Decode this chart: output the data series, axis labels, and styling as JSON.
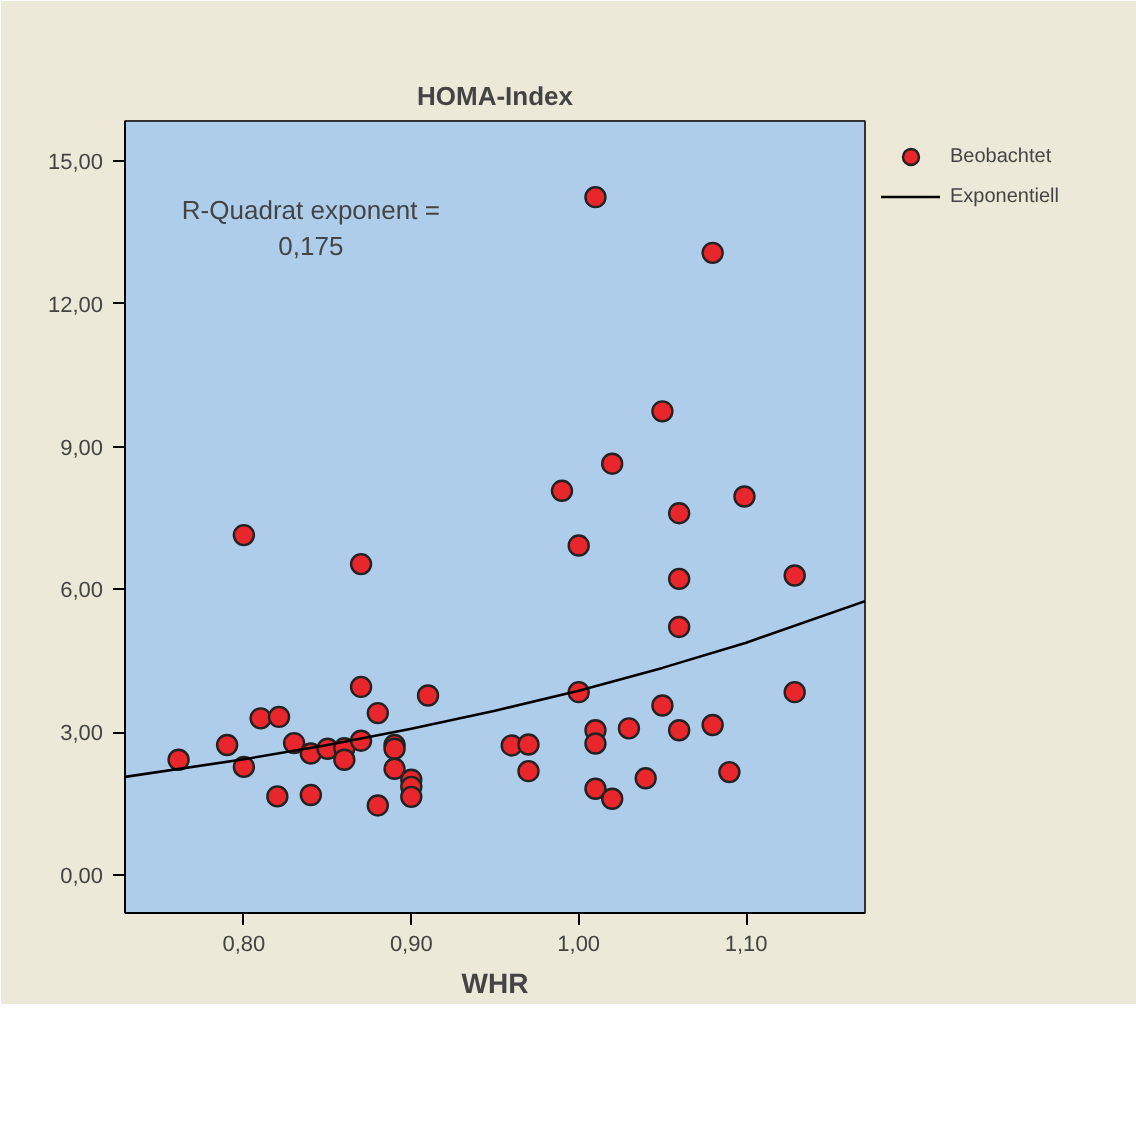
{
  "chart_data": {
    "type": "scatter",
    "title": "HOMA-Index",
    "xlabel": "WHR",
    "annotations": [
      "R-Quadrat exponent =\n0,175"
    ],
    "xlim": [
      0.729,
      1.171
    ],
    "ylim": [
      -0.8,
      15.84
    ],
    "xticks": [
      {
        "value": 0.8,
        "label": "0,80"
      },
      {
        "value": 0.9,
        "label": "0,90"
      },
      {
        "value": 1.0,
        "label": "1,00"
      },
      {
        "value": 1.1,
        "label": "1,10"
      }
    ],
    "yticks": [
      {
        "value": 0,
        "label": "0,00"
      },
      {
        "value": 3,
        "label": "3,00"
      },
      {
        "value": 6,
        "label": "6,00"
      },
      {
        "value": 9,
        "label": "9,00"
      },
      {
        "value": 12,
        "label": "12,00"
      },
      {
        "value": 15,
        "label": "15,00"
      }
    ],
    "grid": false,
    "legend": "right",
    "marker": "circle",
    "series": [
      {
        "name": "Beobachtet",
        "type": "scatter",
        "color": "#e8262b",
        "x": [
          0.8,
          0.87,
          0.87,
          0.91,
          0.81,
          0.821,
          0.88,
          0.761,
          0.79,
          0.8,
          0.83,
          0.84,
          0.85,
          0.86,
          0.86,
          0.87,
          0.89,
          0.89,
          0.89,
          0.9,
          0.9,
          0.9,
          0.82,
          0.84,
          0.88,
          0.96,
          0.99,
          1.099,
          1.06,
          1.0,
          1.06,
          1.129,
          1.06,
          1.0,
          1.129,
          1.05,
          1.01,
          1.01,
          1.03,
          1.06,
          1.08,
          0.97,
          0.97,
          1.01,
          1.02,
          1.04,
          1.09,
          1.01,
          1.08,
          1.05,
          1.02
        ],
        "values": [
          7.14,
          6.53,
          3.95,
          3.77,
          3.29,
          3.32,
          3.4,
          2.42,
          2.73,
          2.27,
          2.77,
          2.55,
          2.65,
          2.66,
          2.42,
          2.82,
          2.73,
          2.65,
          2.23,
          2.0,
          1.85,
          1.64,
          1.65,
          1.68,
          1.46,
          2.72,
          8.07,
          7.95,
          7.6,
          6.92,
          6.22,
          6.29,
          5.21,
          3.84,
          3.84,
          3.56,
          3.04,
          2.76,
          3.08,
          3.04,
          3.15,
          2.74,
          2.18,
          1.81,
          1.6,
          2.03,
          2.16,
          14.24,
          13.07,
          9.74,
          8.64
        ]
      },
      {
        "name": "Exponentiell",
        "type": "line",
        "color": "#000000",
        "line_style": "solid",
        "marker": "none",
        "x": [
          0.729,
          0.8,
          0.85,
          0.9,
          0.95,
          1.0,
          1.05,
          1.1,
          1.171
        ],
        "values": [
          2.06,
          2.43,
          2.73,
          3.07,
          3.45,
          3.87,
          4.35,
          4.88,
          5.75
        ]
      }
    ]
  }
}
